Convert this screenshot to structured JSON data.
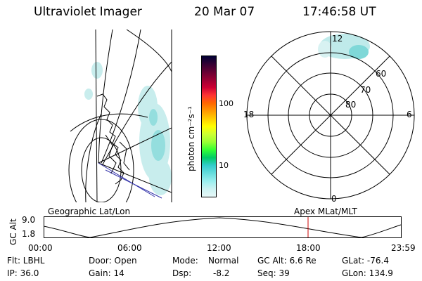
{
  "header": {
    "instrument": "Ultraviolet Imager",
    "date": "20 Mar 07",
    "time": "17:46:58 UT"
  },
  "colorbar": {
    "ticks": [
      "100",
      "10"
    ],
    "unit_label": "photon cm⁻²s⁻¹",
    "colors": [
      "#000033",
      "#330033",
      "#660033",
      "#990033",
      "#cc0033",
      "#ff3333",
      "#ff6600",
      "#ff9900",
      "#ffcc00",
      "#ffff00",
      "#ccff33",
      "#99ff33",
      "#33ff33",
      "#00cc66",
      "#33cccc",
      "#66dddd",
      "#99eeee",
      "#ccf2f2",
      "#e6f8f8"
    ]
  },
  "polar_plot": {
    "top_label": "12",
    "bottom_label": "0",
    "left_label": "18",
    "right_label": "6",
    "ring_labels": [
      "60",
      "70",
      "80"
    ]
  },
  "timeline": {
    "left_label": "Geographic Lat/Lon",
    "right_label": "Apex MLat/MLT",
    "y_axis_title": "GC Alt",
    "y_ticks": [
      "9.0",
      "1.8"
    ],
    "x_ticks": [
      "00:00",
      "06:00",
      "12:00",
      "18:00",
      "23:59"
    ],
    "current_time_color": "#cc0000"
  },
  "status": {
    "filter": "Flt: LBHL",
    "door": "Door: Open",
    "mode_label": "Mode:",
    "mode_value": "Normal",
    "gc_alt": "GC Alt: 6.6 Re",
    "glat": "GLat: -76.4",
    "ip": "IP: 36.0",
    "gain": "Gain: 14",
    "dsp_label": "Dsp:",
    "dsp_value": "-8.2",
    "seq": "Seq: 39",
    "glon": "GLon: 134.9"
  }
}
